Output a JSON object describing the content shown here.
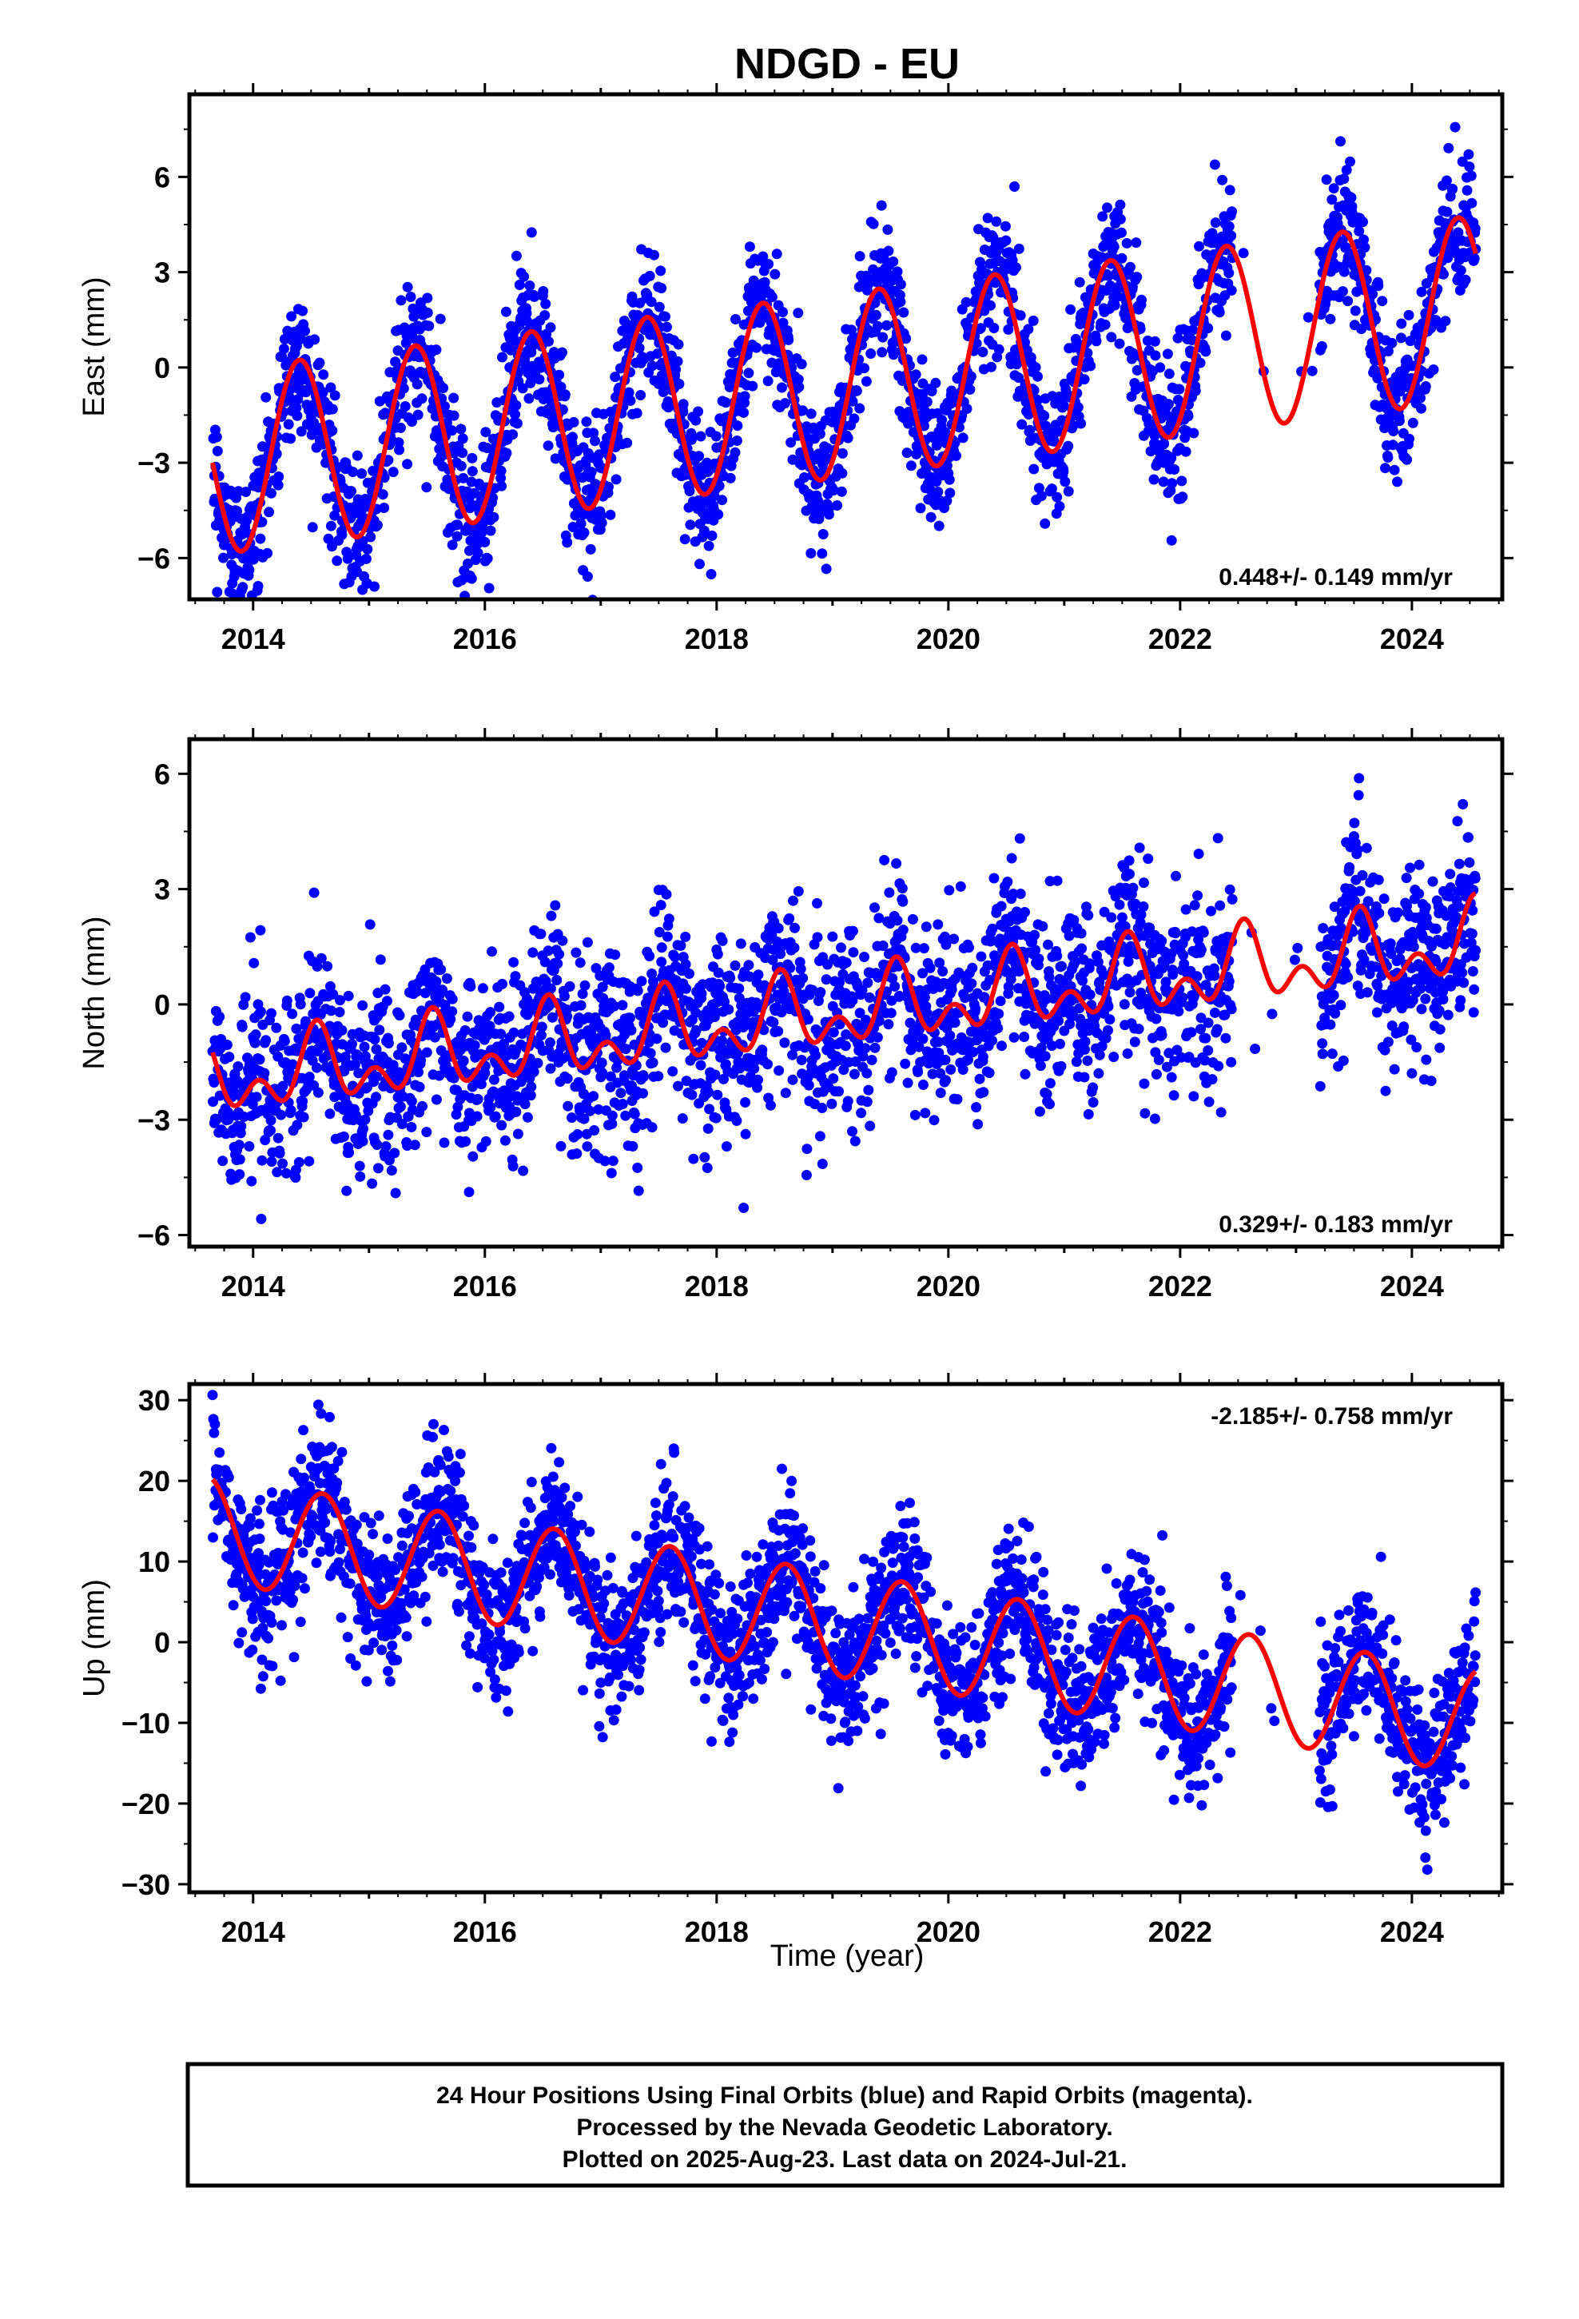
{
  "title": "NDGD - EU",
  "xlabel": "Time (year)",
  "footer": {
    "line1": "24 Hour Positions Using Final Orbits (blue) and Rapid Orbits (magenta).",
    "line2": "Processed by the Nevada Geodetic Laboratory.",
    "line3": "Plotted on 2025-Aug-23. Last data on 2024-Jul-21."
  },
  "colors": {
    "points": "#0000ff",
    "model": "#ff0000",
    "frame": "#000000"
  },
  "chart_data": [
    {
      "type": "scatter",
      "ylabel": "East (mm)",
      "rate": "0.448+/- 0.149 mm/yr",
      "rate_position": "bottom-right",
      "xlim": [
        2013.45,
        2024.78
      ],
      "ylim": [
        -7.3,
        8.6
      ],
      "xticks": [
        2014,
        2016,
        2018,
        2020,
        2022,
        2024
      ],
      "xticklabels": [
        "2014",
        "2016",
        "2018",
        "2020",
        "2022",
        "2024"
      ],
      "yticks": [
        -6,
        -3,
        0,
        3,
        6
      ],
      "yticklabels": [
        "−6",
        "−3",
        "0",
        "3",
        "6"
      ],
      "model": {
        "offset": -3.0,
        "trend": 0.448,
        "amplitude": 2.9,
        "period": 1.0,
        "peak_phase": 0.4,
        "semiannual": 0.0
      },
      "data_start": 2013.65,
      "data_end": 2024.55,
      "scatter_sigma": 1.1,
      "gap": [
        2022.45,
        2023.2
      ],
      "series": [
        {
          "name": "Final Orbits",
          "color": "#0000ff"
        },
        {
          "name": "Model",
          "color": "#ff0000"
        }
      ]
    },
    {
      "type": "scatter",
      "ylabel": "North (mm)",
      "rate": "0.329+/- 0.183 mm/yr",
      "rate_position": "bottom-right",
      "xlim": [
        2013.45,
        2024.78
      ],
      "ylim": [
        -6.3,
        6.9
      ],
      "xticks": [
        2014,
        2016,
        2018,
        2020,
        2022,
        2024
      ],
      "xticklabels": [
        "2014",
        "2016",
        "2018",
        "2020",
        "2022",
        "2024"
      ],
      "yticks": [
        -6,
        -3,
        0,
        3,
        6
      ],
      "yticklabels": [
        "−6",
        "−3",
        "0",
        "3",
        "6"
      ],
      "model": {
        "offset": -2.0,
        "trend": 0.329,
        "amplitude": 0.7,
        "period": 1.0,
        "peak_phase": 0.55,
        "semiannual": 0.6
      },
      "data_start": 2013.65,
      "data_end": 2024.55,
      "scatter_sigma": 1.2,
      "gap": [
        2022.45,
        2023.2
      ],
      "series": [
        {
          "name": "Final Orbits",
          "color": "#0000ff"
        },
        {
          "name": "Model",
          "color": "#ff0000"
        }
      ]
    },
    {
      "type": "scatter",
      "ylabel": "Up (mm)",
      "rate": "-2.185+/- 0.758 mm/yr",
      "rate_position": "top-right",
      "xlim": [
        2013.45,
        2024.78
      ],
      "ylim": [
        -31,
        32
      ],
      "xticks": [
        2014,
        2016,
        2018,
        2020,
        2022,
        2024
      ],
      "xticklabels": [
        "2014",
        "2016",
        "2018",
        "2020",
        "2022",
        "2024"
      ],
      "yticks": [
        -30,
        -20,
        -10,
        0,
        10,
        20,
        30
      ],
      "yticklabels": [
        "−30",
        "−20",
        "−10",
        "0",
        "10",
        "20",
        "30"
      ],
      "model": {
        "offset": 14.0,
        "trend": -2.185,
        "amplitude": 6.5,
        "period": 1.0,
        "peak_phase": 0.6,
        "semiannual": 0.0
      },
      "data_start": 2013.65,
      "data_end": 2024.55,
      "scatter_sigma": 4.5,
      "gap": [
        2022.45,
        2023.2
      ],
      "series": [
        {
          "name": "Final Orbits",
          "color": "#0000ff"
        },
        {
          "name": "Model",
          "color": "#ff0000"
        }
      ]
    }
  ]
}
